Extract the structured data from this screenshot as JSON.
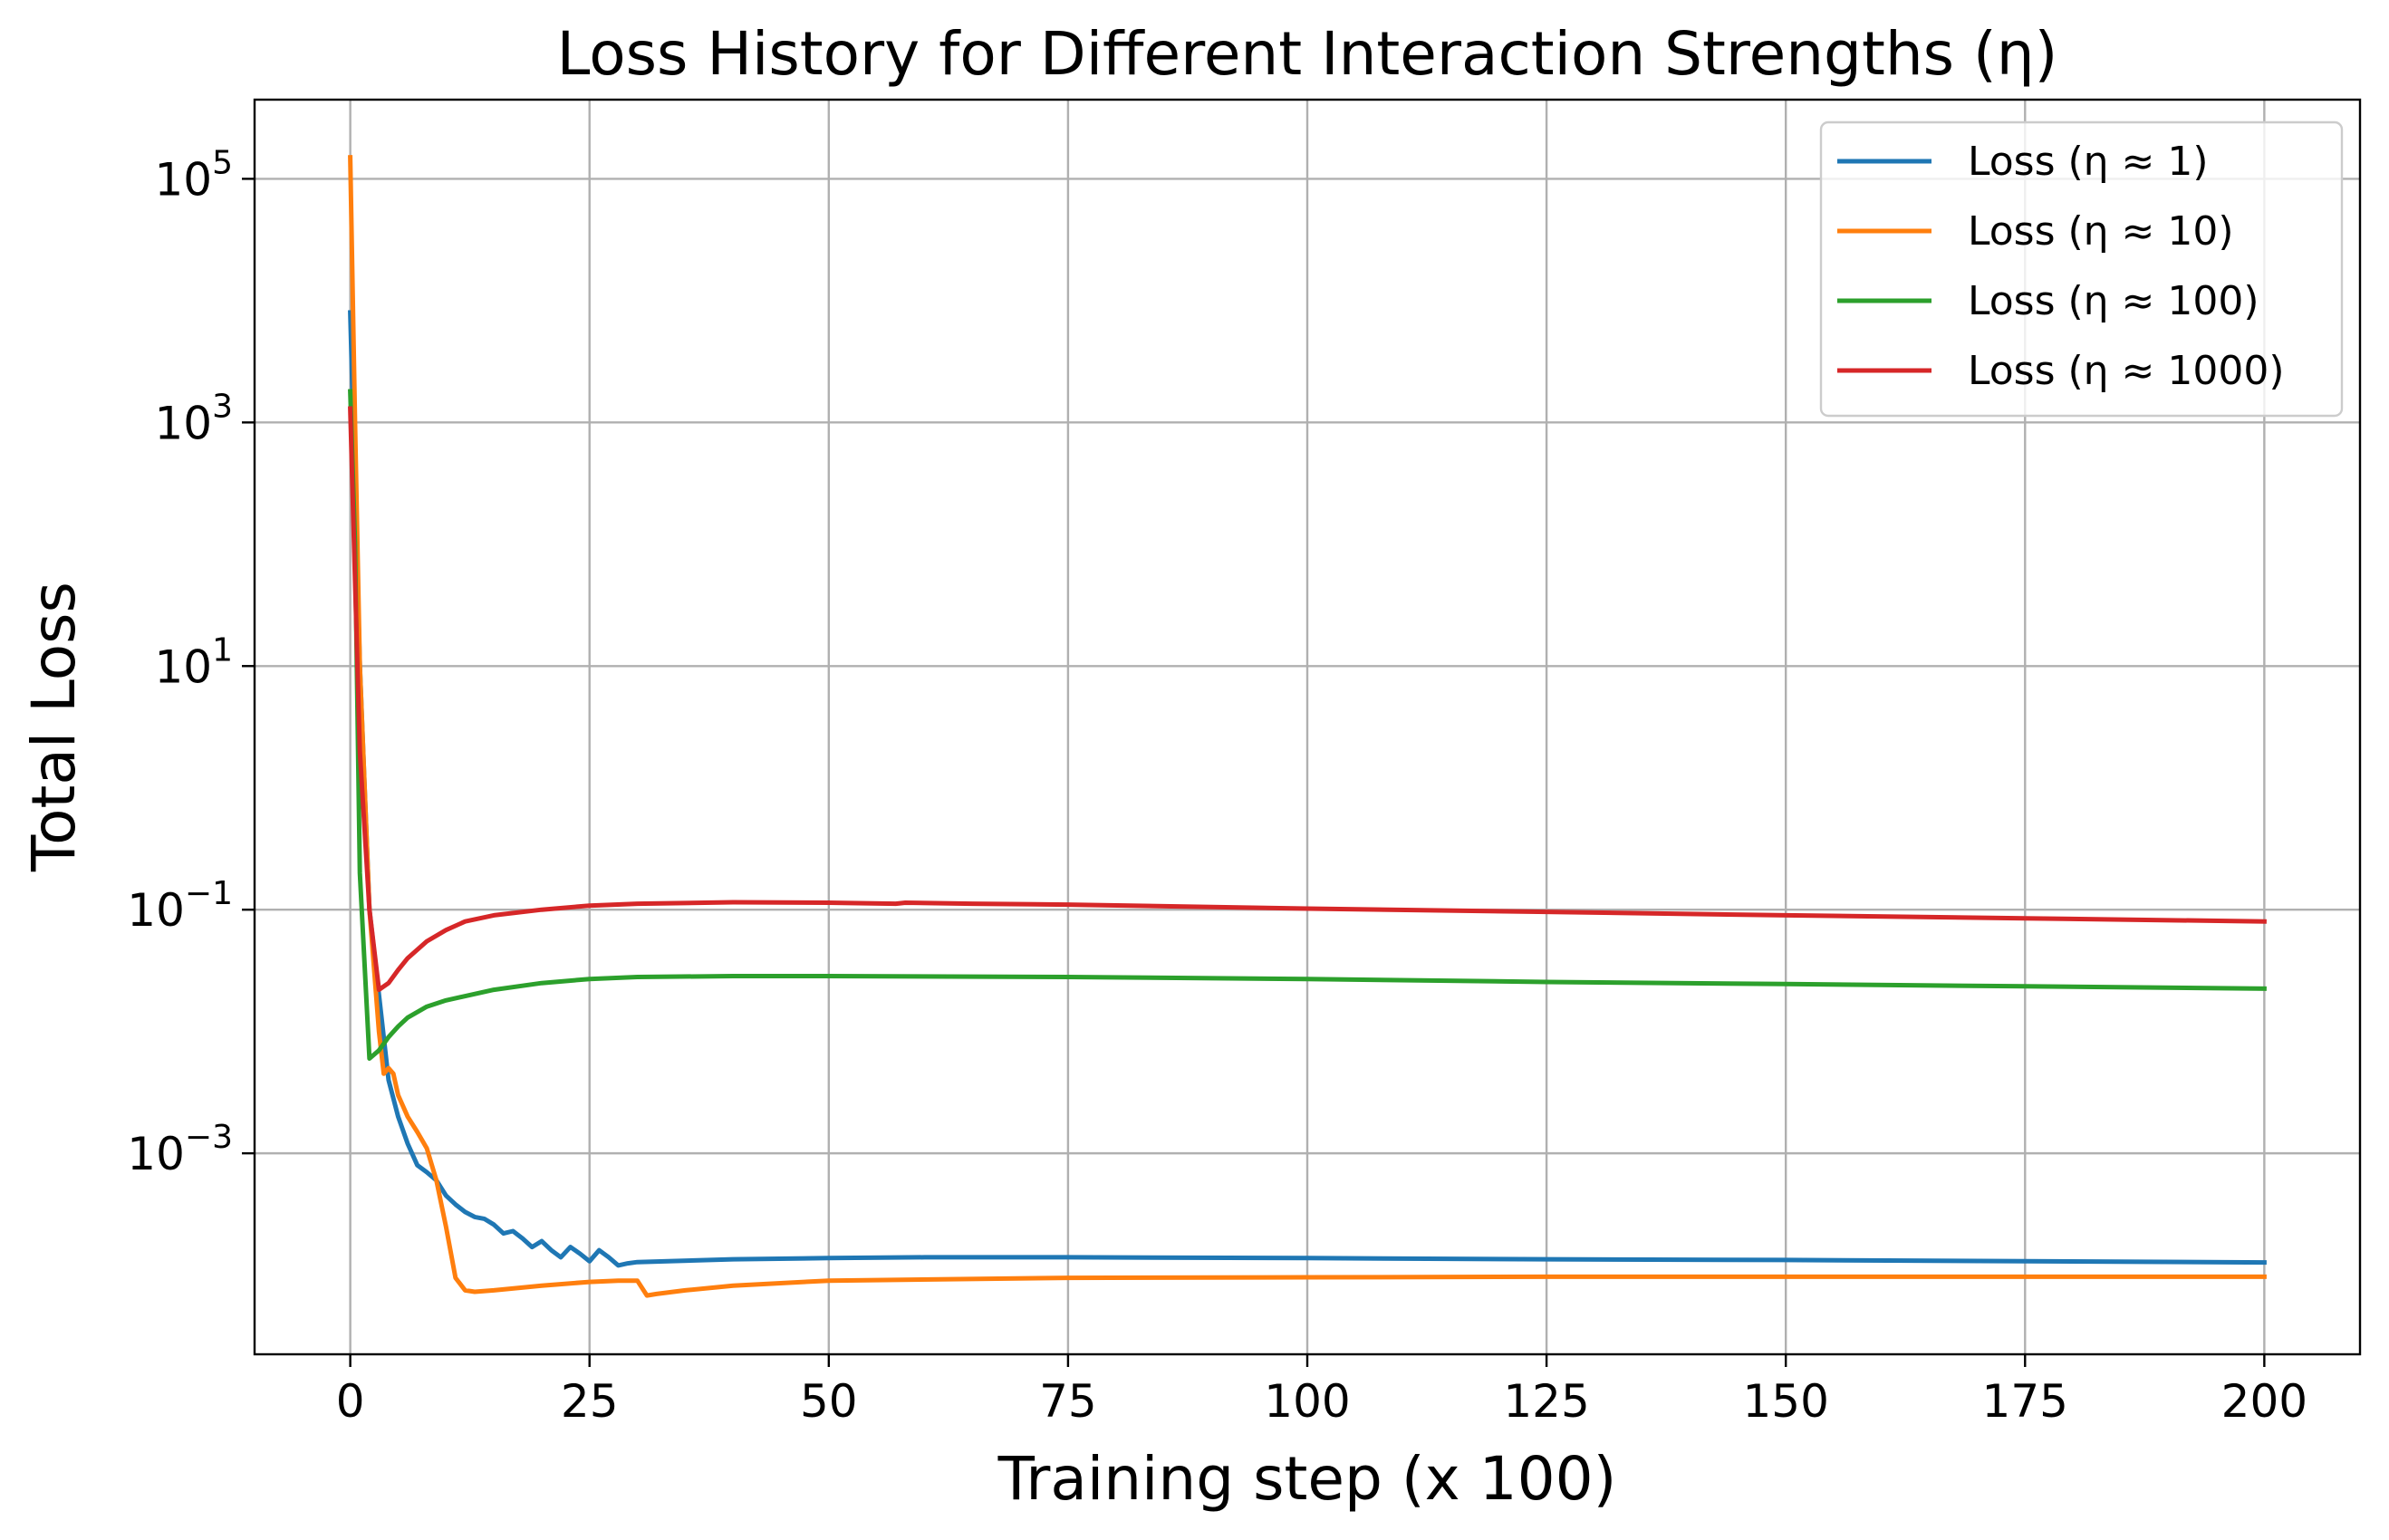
{
  "chart_data": {
    "type": "line",
    "title": "Loss History for Different Interaction Strengths (η)",
    "xlabel": "Training step (x 100)",
    "ylabel": "Total Loss",
    "xlim": [
      -10,
      210
    ],
    "ylim_log10": [
      -4.65,
      5.65
    ],
    "y_scale": "log",
    "grid": true,
    "legend_position": "top-right",
    "x_ticks": [
      {
        "value": 0,
        "label": "0"
      },
      {
        "value": 25,
        "label": "25"
      },
      {
        "value": 50,
        "label": "50"
      },
      {
        "value": 75,
        "label": "75"
      },
      {
        "value": 100,
        "label": "100"
      },
      {
        "value": 125,
        "label": "125"
      },
      {
        "value": 150,
        "label": "150"
      },
      {
        "value": 175,
        "label": "175"
      },
      {
        "value": 200,
        "label": "200"
      }
    ],
    "y_ticks": [
      {
        "value": 100000,
        "base": "10",
        "exp": "5"
      },
      {
        "value": 1000,
        "base": "10",
        "exp": "3"
      },
      {
        "value": 10,
        "base": "10",
        "exp": "1"
      },
      {
        "value": 0.1,
        "base": "10",
        "exp": "−1"
      },
      {
        "value": 0.001,
        "base": "10",
        "exp": "−3"
      }
    ],
    "series": [
      {
        "name": "Loss (η ≈ 1)",
        "color": "#1f77b4",
        "points": [
          [
            0,
            8000
          ],
          [
            1,
            10
          ],
          [
            2,
            0.1
          ],
          [
            3,
            0.02
          ],
          [
            4,
            0.004
          ],
          [
            5,
            0.002
          ],
          [
            6,
            0.0012
          ],
          [
            7,
            0.0008
          ],
          [
            8,
            0.0007
          ],
          [
            9,
            0.0006
          ],
          [
            10,
            0.00045
          ],
          [
            11,
            0.00038
          ],
          [
            12,
            0.00033
          ],
          [
            13,
            0.0003
          ],
          [
            14,
            0.00029
          ],
          [
            15,
            0.00026
          ],
          [
            16,
            0.00022
          ],
          [
            17,
            0.00023
          ],
          [
            18,
            0.0002
          ],
          [
            19,
            0.00017
          ],
          [
            20,
            0.00019
          ],
          [
            21,
            0.00016
          ],
          [
            22,
            0.00014
          ],
          [
            23,
            0.00017
          ],
          [
            24,
            0.00015
          ],
          [
            25,
            0.00013
          ],
          [
            26,
            0.00016
          ],
          [
            27,
            0.00014
          ],
          [
            28,
            0.00012
          ],
          [
            29,
            0.000125
          ],
          [
            30,
            0.000128
          ],
          [
            40,
            0.000135
          ],
          [
            50,
            0.000138
          ],
          [
            60,
            0.00014
          ],
          [
            75,
            0.00014
          ],
          [
            100,
            0.000138
          ],
          [
            125,
            0.000135
          ],
          [
            150,
            0.000133
          ],
          [
            175,
            0.00013
          ],
          [
            200,
            0.000127
          ]
        ]
      },
      {
        "name": "Loss (η ≈ 10)",
        "color": "#ff7f0e",
        "points": [
          [
            0,
            150000
          ],
          [
            0.5,
            1000
          ],
          [
            1,
            10
          ],
          [
            2,
            0.1
          ],
          [
            3,
            0.01
          ],
          [
            3.5,
            0.0045
          ],
          [
            4,
            0.005
          ],
          [
            4.5,
            0.0045
          ],
          [
            5,
            0.003
          ],
          [
            6,
            0.002
          ],
          [
            7,
            0.0015
          ],
          [
            8,
            0.0011
          ],
          [
            9,
            0.0006
          ],
          [
            10,
            0.00025
          ],
          [
            11,
            9.5e-05
          ],
          [
            12,
            7.5e-05
          ],
          [
            13,
            7.3e-05
          ],
          [
            15,
            7.5e-05
          ],
          [
            20,
            8.2e-05
          ],
          [
            25,
            8.8e-05
          ],
          [
            28,
            9e-05
          ],
          [
            30,
            9e-05
          ],
          [
            31,
            6.8e-05
          ],
          [
            32,
            7e-05
          ],
          [
            35,
            7.5e-05
          ],
          [
            40,
            8.2e-05
          ],
          [
            50,
            9e-05
          ],
          [
            75,
            9.5e-05
          ],
          [
            100,
            9.6e-05
          ],
          [
            125,
            9.7e-05
          ],
          [
            150,
            9.7e-05
          ],
          [
            175,
            9.7e-05
          ],
          [
            200,
            9.7e-05
          ]
        ]
      },
      {
        "name": "Loss (η ≈ 100)",
        "color": "#2ca02c",
        "points": [
          [
            0,
            1800
          ],
          [
            0.5,
            100
          ],
          [
            1,
            0.2
          ],
          [
            2,
            0.006
          ],
          [
            3,
            0.007
          ],
          [
            4,
            0.009
          ],
          [
            5,
            0.011
          ],
          [
            6,
            0.013
          ],
          [
            8,
            0.016
          ],
          [
            10,
            0.018
          ],
          [
            15,
            0.022
          ],
          [
            20,
            0.025
          ],
          [
            25,
            0.027
          ],
          [
            30,
            0.028
          ],
          [
            40,
            0.0285
          ],
          [
            50,
            0.0285
          ],
          [
            75,
            0.028
          ],
          [
            100,
            0.027
          ],
          [
            125,
            0.0255
          ],
          [
            150,
            0.0245
          ],
          [
            175,
            0.0235
          ],
          [
            200,
            0.0225
          ]
        ]
      },
      {
        "name": "Loss (η ≈ 1000)",
        "color": "#d62728",
        "points": [
          [
            0,
            1300
          ],
          [
            0.5,
            50
          ],
          [
            1,
            2
          ],
          [
            2,
            0.1
          ],
          [
            3,
            0.022
          ],
          [
            4,
            0.025
          ],
          [
            5,
            0.032
          ],
          [
            6,
            0.04
          ],
          [
            8,
            0.055
          ],
          [
            10,
            0.068
          ],
          [
            12,
            0.08
          ],
          [
            15,
            0.09
          ],
          [
            20,
            0.1
          ],
          [
            25,
            0.108
          ],
          [
            30,
            0.112
          ],
          [
            40,
            0.115
          ],
          [
            50,
            0.114
          ],
          [
            57,
            0.112
          ],
          [
            58,
            0.114
          ],
          [
            65,
            0.112
          ],
          [
            75,
            0.11
          ],
          [
            100,
            0.102
          ],
          [
            125,
            0.096
          ],
          [
            150,
            0.09
          ],
          [
            175,
            0.085
          ],
          [
            200,
            0.08
          ]
        ]
      }
    ]
  }
}
